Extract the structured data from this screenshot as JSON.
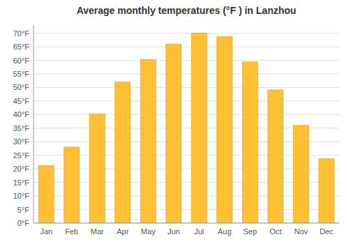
{
  "chart_data": {
    "type": "bar",
    "title": "Average monthly temperatures (°F ) in Lanzhou",
    "categories": [
      "Jan",
      "Feb",
      "Mar",
      "Apr",
      "May",
      "Jun",
      "Jul",
      "Aug",
      "Sep",
      "Oct",
      "Nov",
      "Dec"
    ],
    "values": [
      21.2,
      28.0,
      40.3,
      52.0,
      60.3,
      66.0,
      70.0,
      68.7,
      59.4,
      49.1,
      36.0,
      23.7
    ],
    "color": "#FFC133",
    "ylim": [
      0,
      73
    ],
    "yticks": [
      {
        "value": 0,
        "label": "0°F"
      },
      {
        "value": 5,
        "label": "5°F"
      },
      {
        "value": 10,
        "label": "10°F"
      },
      {
        "value": 15,
        "label": "15°F"
      },
      {
        "value": 20,
        "label": "20°F"
      },
      {
        "value": 25,
        "label": "25°F"
      },
      {
        "value": 30,
        "label": "30°F"
      },
      {
        "value": 35,
        "label": "35°F"
      },
      {
        "value": 40,
        "label": "40°F"
      },
      {
        "value": 45,
        "label": "45°F"
      },
      {
        "value": 50,
        "label": "50°F"
      },
      {
        "value": 55,
        "label": "55°F"
      },
      {
        "value": 60,
        "label": "60°F"
      },
      {
        "value": 65,
        "label": "65°F"
      },
      {
        "value": 70,
        "label": "70°F"
      }
    ],
    "grid": true
  }
}
